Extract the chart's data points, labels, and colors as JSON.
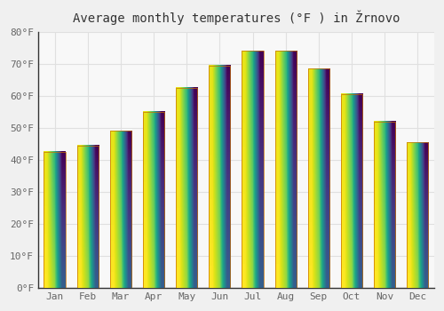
{
  "title": "Average monthly temperatures (°F ) in Žrnovo",
  "months": [
    "Jan",
    "Feb",
    "Mar",
    "Apr",
    "May",
    "Jun",
    "Jul",
    "Aug",
    "Sep",
    "Oct",
    "Nov",
    "Dec"
  ],
  "values": [
    42.5,
    44.5,
    49.0,
    55.0,
    62.5,
    69.5,
    74.0,
    74.0,
    68.5,
    60.5,
    52.0,
    45.5
  ],
  "bar_color_top": "#F5A800",
  "bar_color_bottom": "#FFD84D",
  "bar_edge_color": "#C87000",
  "background_color": "#f0f0f0",
  "plot_bg_color": "#f8f8f8",
  "grid_color": "#e0e0e0",
  "ylim": [
    0,
    80
  ],
  "ytick_step": 10,
  "title_fontsize": 10,
  "tick_fontsize": 8,
  "bar_width": 0.65,
  "figsize": [
    5.0,
    3.5
  ],
  "dpi": 100
}
